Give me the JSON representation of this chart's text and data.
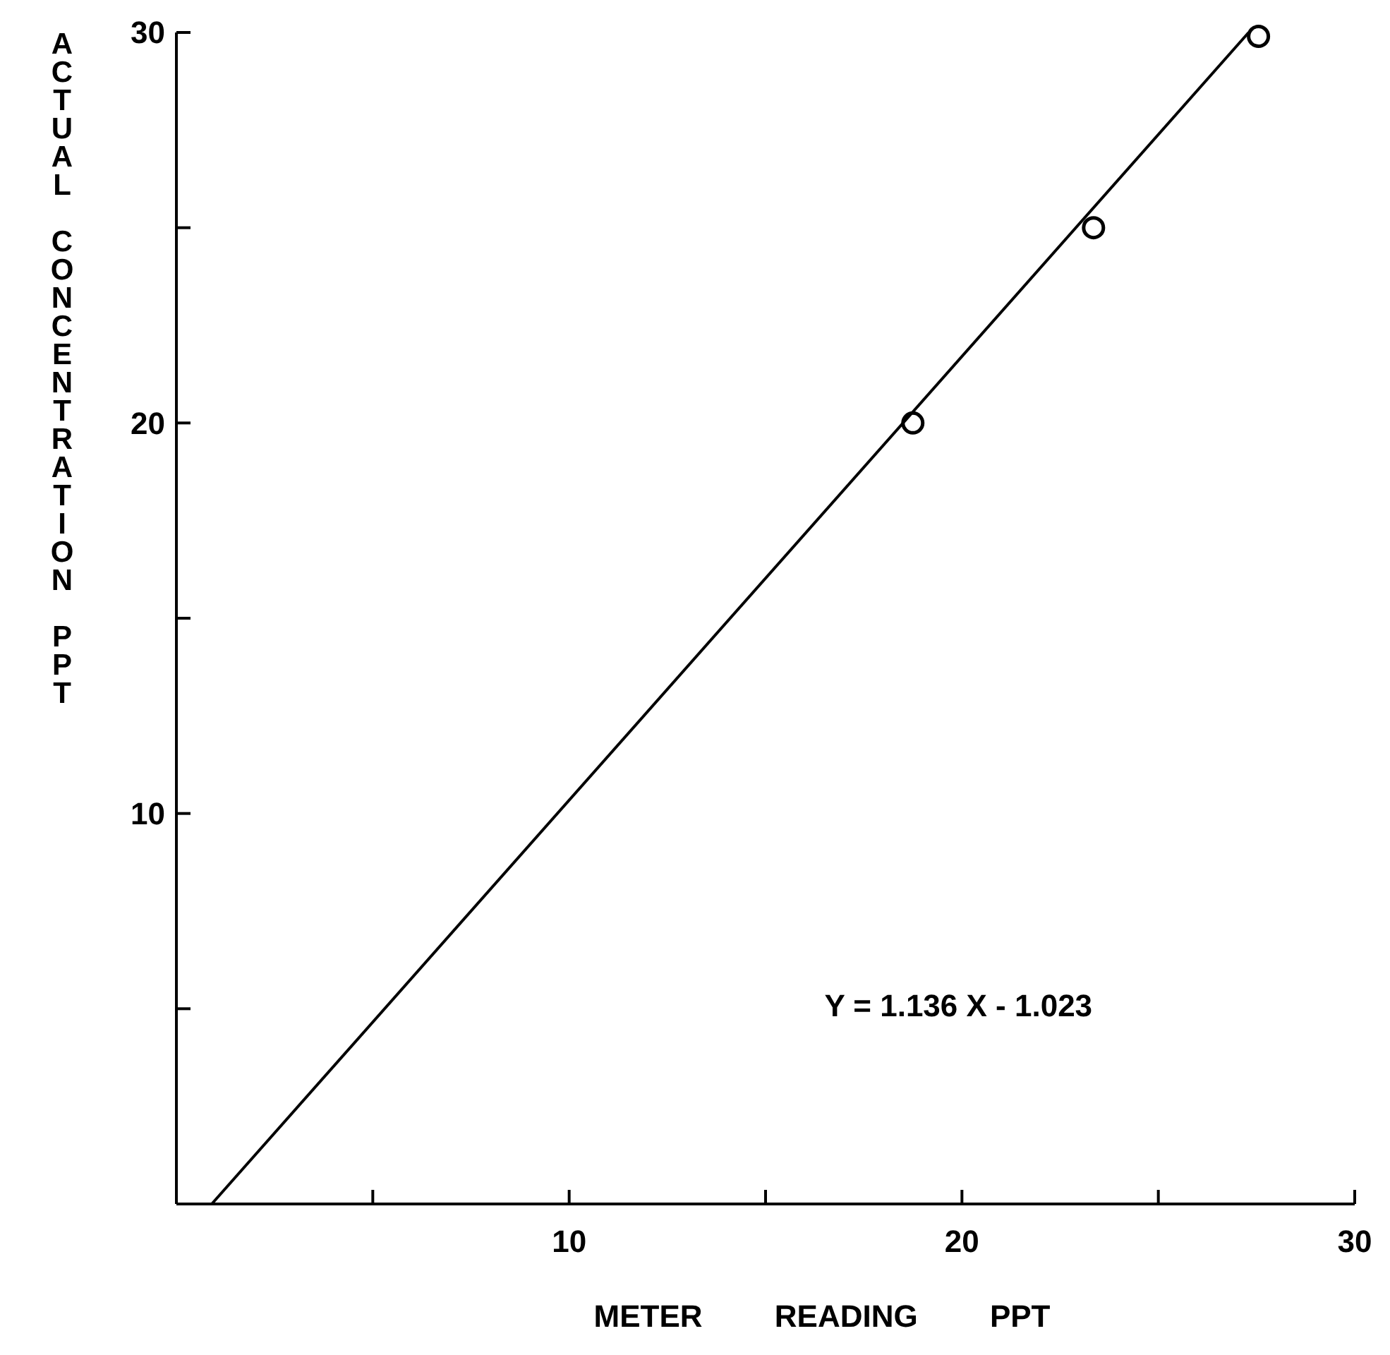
{
  "chart_data": {
    "type": "scatter",
    "xlabel": "METER READING PPT",
    "ylabel": "ACTUAL CONCENTRATION PPT",
    "xlim": [
      0,
      30
    ],
    "ylim": [
      0,
      30
    ],
    "xticks": [
      {
        "value": 5,
        "label": null
      },
      10,
      {
        "value": 15,
        "label": null
      },
      20,
      {
        "value": 25,
        "label": null
      },
      30
    ],
    "yticks": [
      {
        "value": 5,
        "label": null
      },
      10,
      {
        "value": 15,
        "label": null
      },
      20,
      {
        "value": 25,
        "label": null
      },
      30
    ],
    "series": [
      {
        "x": [
          18.75,
          23.35,
          27.55
        ],
        "values": [
          20,
          25,
          29.9
        ],
        "color": "#000000",
        "marker": "circle"
      },
      {
        "type": "line",
        "x": [
          0.9,
          27.3
        ],
        "values": [
          0,
          30
        ],
        "color": "#000000",
        "marker": "none",
        "line_style": "solid"
      }
    ],
    "annotations": [
      "Y = 1.136 X - 1.023"
    ],
    "grid": false
  }
}
